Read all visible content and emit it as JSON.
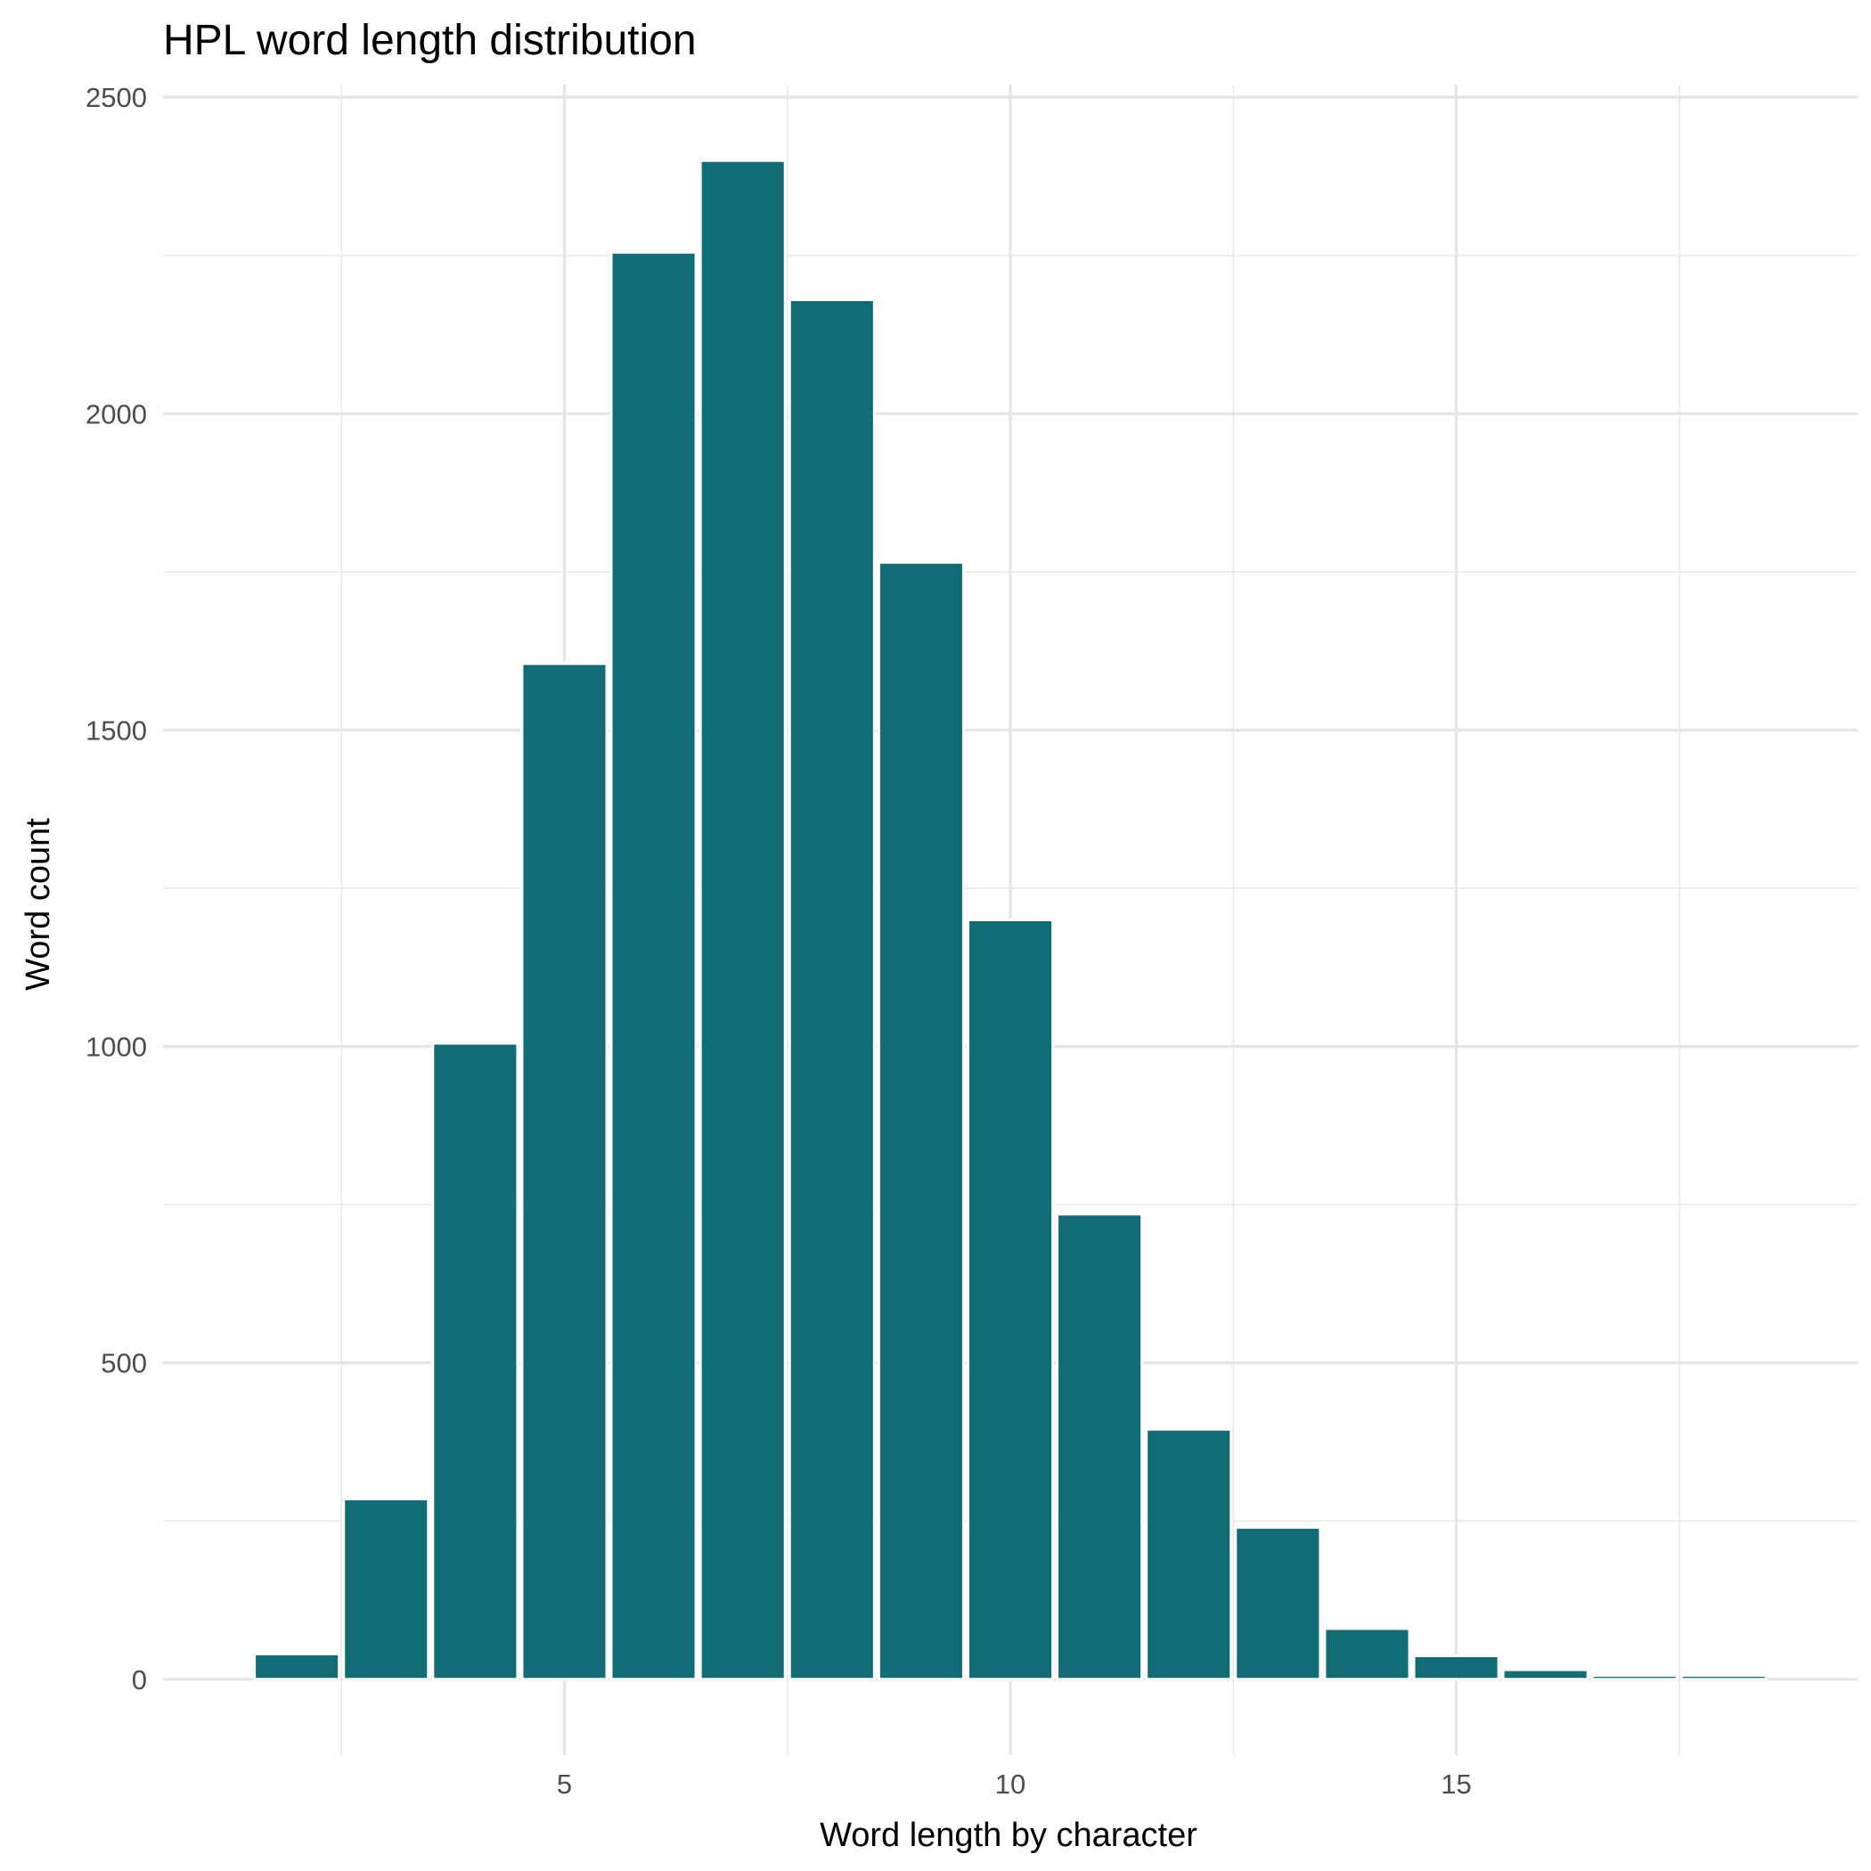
{
  "chart_data": {
    "type": "bar",
    "title": "HPL word length distribution",
    "xlabel": "Word length by character",
    "ylabel": "Word count",
    "x": [
      2,
      3,
      4,
      5,
      6,
      7,
      8,
      9,
      10,
      11,
      12,
      13,
      14,
      15,
      16,
      17,
      18
    ],
    "values": [
      40,
      285,
      1005,
      1605,
      2255,
      2400,
      2180,
      1765,
      1200,
      735,
      395,
      240,
      80,
      37,
      15,
      6,
      6
    ],
    "xlim": [
      0.5,
      19.5
    ],
    "ylim": [
      -120,
      2520
    ],
    "x_ticks": [
      5,
      10,
      15
    ],
    "y_ticks": [
      0,
      500,
      1000,
      1500,
      2000,
      2500
    ],
    "x_tick_labels": [
      "5",
      "10",
      "15"
    ],
    "y_tick_labels": [
      "0",
      "500",
      "1000",
      "1500",
      "2000",
      "2500"
    ],
    "grid": true,
    "bar_color": "#106d75",
    "bar_outline": "#ffffff",
    "background": "#ffffff"
  }
}
